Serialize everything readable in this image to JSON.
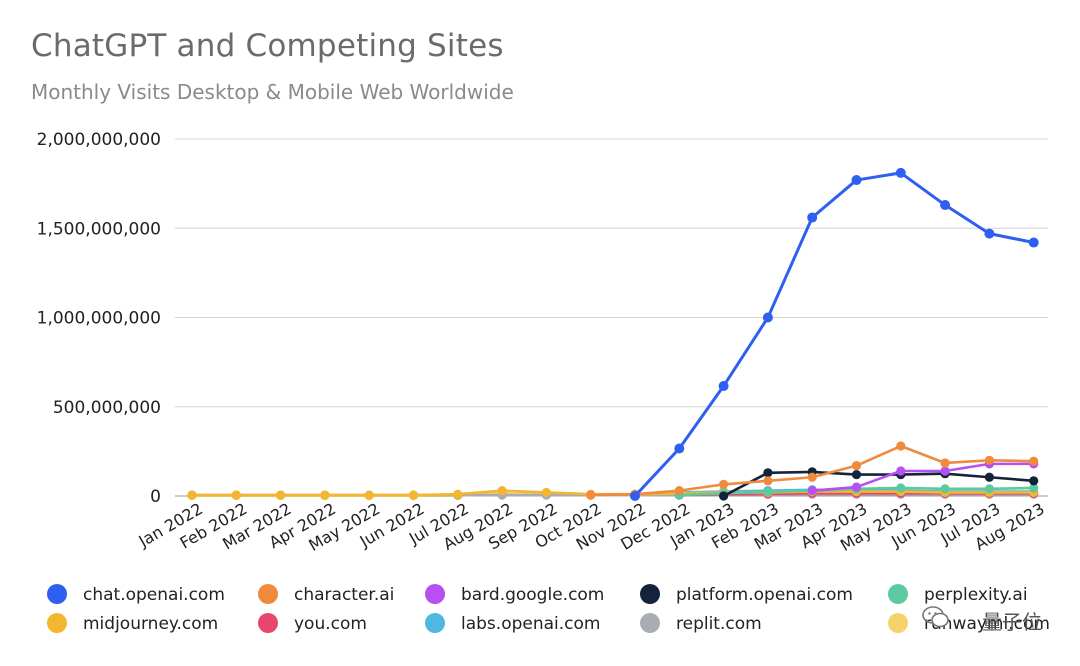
{
  "header": {
    "title": "ChatGPT and Competing Sites",
    "subtitle": "Monthly Visits Desktop & Mobile Web Worldwide"
  },
  "watermark": {
    "text": "量子位",
    "icon": "wechat-icon"
  },
  "chart_data": {
    "type": "line",
    "title": "ChatGPT and Competing Sites",
    "subtitle": "Monthly Visits Desktop & Mobile Web Worldwide",
    "xlabel": "",
    "ylabel": "",
    "ylim": [
      0,
      2000000000
    ],
    "yticks": [
      "0",
      "500,000,000",
      "1,000,000,000",
      "1,500,000,000",
      "2,000,000,000"
    ],
    "grid": true,
    "legend_position": "bottom",
    "categories": [
      "Jan 2022",
      "Feb 2022",
      "Mar 2022",
      "Apr 2022",
      "May 2022",
      "Jun 2022",
      "Jul 2022",
      "Aug 2022",
      "Sep 2022",
      "Oct 2022",
      "Nov 2022",
      "Dec 2022",
      "Jan 2023",
      "Feb 2023",
      "Mar 2023",
      "Apr 2023",
      "May 2023",
      "Jun 2023",
      "Jul 2023",
      "Aug 2023"
    ],
    "series": [
      {
        "name": "chat.openai.com",
        "color": "#2f5ff0",
        "values": [
          null,
          null,
          null,
          null,
          null,
          null,
          null,
          null,
          null,
          null,
          0,
          266000000,
          616000000,
          1000000000,
          1560000000,
          1770000000,
          1810000000,
          1630000000,
          1470000000,
          1420000000
        ]
      },
      {
        "name": "character.ai",
        "color": "#f08a3c",
        "values": [
          null,
          null,
          null,
          null,
          null,
          null,
          null,
          null,
          null,
          5000000,
          10000000,
          30000000,
          65000000,
          85000000,
          105000000,
          170000000,
          280000000,
          185000000,
          200000000,
          195000000
        ]
      },
      {
        "name": "bard.google.com",
        "color": "#b84ff0",
        "values": [
          null,
          null,
          null,
          null,
          null,
          null,
          null,
          null,
          null,
          null,
          null,
          null,
          null,
          null,
          30000000,
          50000000,
          140000000,
          140000000,
          180000000,
          180000000
        ]
      },
      {
        "name": "platform.openai.com",
        "color": "#14233c",
        "values": [
          null,
          null,
          null,
          null,
          null,
          null,
          null,
          null,
          null,
          null,
          null,
          null,
          0,
          130000000,
          135000000,
          120000000,
          120000000,
          125000000,
          105000000,
          85000000
        ]
      },
      {
        "name": "perplexity.ai",
        "color": "#5cc9a0",
        "values": [
          null,
          null,
          null,
          null,
          null,
          null,
          null,
          null,
          null,
          null,
          null,
          5000000,
          15000000,
          25000000,
          30000000,
          40000000,
          45000000,
          40000000,
          40000000,
          45000000
        ]
      },
      {
        "name": "midjourney.com",
        "color": "#f2b631",
        "values": [
          5000000,
          5000000,
          5000000,
          5000000,
          5000000,
          5000000,
          10000000,
          30000000,
          20000000,
          10000000,
          10000000,
          15000000,
          20000000,
          20000000,
          25000000,
          25000000,
          25000000,
          20000000,
          20000000,
          20000000
        ]
      },
      {
        "name": "you.com",
        "color": "#e8466e",
        "values": [
          null,
          null,
          null,
          null,
          null,
          null,
          null,
          null,
          null,
          null,
          null,
          5000000,
          10000000,
          12000000,
          15000000,
          15000000,
          15000000,
          15000000,
          15000000,
          15000000
        ]
      },
      {
        "name": "labs.openai.com",
        "color": "#4fb8e0",
        "values": [
          null,
          null,
          null,
          null,
          null,
          null,
          null,
          null,
          null,
          null,
          null,
          20000000,
          25000000,
          30000000,
          35000000,
          35000000,
          30000000,
          25000000,
          25000000,
          25000000
        ]
      },
      {
        "name": "replit.com",
        "color": "#a9adb3",
        "values": [
          5000000,
          5000000,
          5000000,
          5000000,
          5000000,
          5000000,
          5000000,
          5000000,
          5000000,
          5000000,
          5000000,
          5000000,
          10000000,
          10000000,
          10000000,
          10000000,
          10000000,
          10000000,
          10000000,
          10000000
        ]
      },
      {
        "name": "runwayml.com",
        "color": "#f4d36a",
        "values": [
          2000000,
          2000000,
          2000000,
          2000000,
          2000000,
          2000000,
          2000000,
          15000000,
          10000000,
          5000000,
          5000000,
          8000000,
          10000000,
          10000000,
          15000000,
          15000000,
          15000000,
          15000000,
          15000000,
          15000000
        ]
      }
    ]
  }
}
